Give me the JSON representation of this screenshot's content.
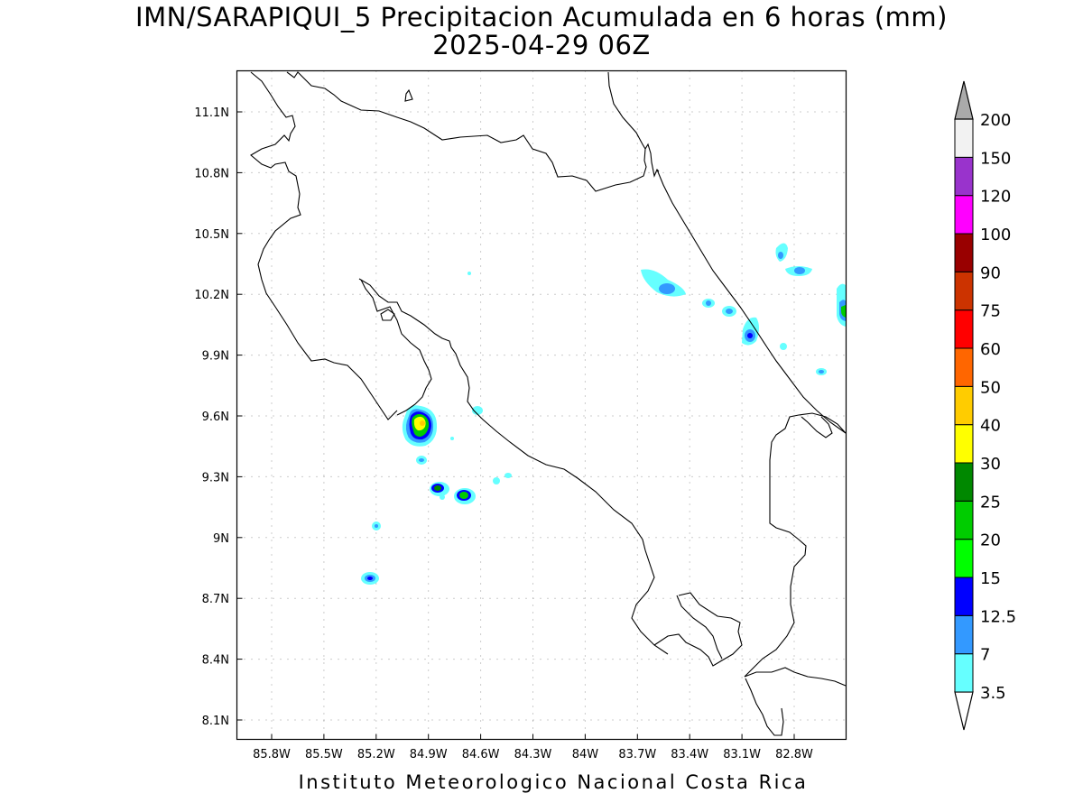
{
  "map": {
    "title_line1": "IMN/SARAPIQUI_5 Precipitacion Acumulada en 6 horas (mm)",
    "title_line2": "2025-04-29 06Z",
    "footer": "Instituto Meteorologico Nacional Costa Rica",
    "lon_ticks": [
      "85.8W",
      "85.5W",
      "85.2W",
      "84.9W",
      "84.6W",
      "84.3W",
      "84W",
      "83.7W",
      "83.4W",
      "83.1W",
      "82.8W"
    ],
    "lat_ticks": [
      "11.1N",
      "10.8N",
      "10.5N",
      "10.2N",
      "9.9N",
      "9.6N",
      "9.3N",
      "9N",
      "8.7N",
      "8.4N",
      "8.1N"
    ],
    "colorbar": {
      "labels": [
        "3.5",
        "7",
        "12.5",
        "15",
        "20",
        "25",
        "30",
        "40",
        "50",
        "60",
        "75",
        "90",
        "100",
        "120",
        "150",
        "200"
      ],
      "colors": [
        "#66ffff",
        "#3399ff",
        "#0000ff",
        "#00ff00",
        "#00cc00",
        "#008800",
        "#ffff00",
        "#ffcc00",
        "#ff6600",
        "#ff0000",
        "#cc3300",
        "#990000",
        "#ff00ff",
        "#9933cc",
        "#f2f2f2",
        "#aaaaaa"
      ]
    },
    "precip_cells": [
      {
        "region": "near 85.0W 9.6N",
        "max_class": "40"
      },
      {
        "region": "near 84.85W 9.25N",
        "max_class": "25"
      },
      {
        "region": "near 84.7W 9.2N",
        "max_class": "25"
      },
      {
        "region": "near 85.2W 8.8N",
        "max_class": "15"
      },
      {
        "region": "near 83.55W 10.25N",
        "max_class": "12.5"
      },
      {
        "region": "near 83.0W 10.0N",
        "max_class": "15"
      },
      {
        "region": "near 82.55W 10.1N",
        "max_class": "25"
      },
      {
        "region": "near 82.7W 10.3N",
        "max_class": "12.5"
      }
    ]
  }
}
